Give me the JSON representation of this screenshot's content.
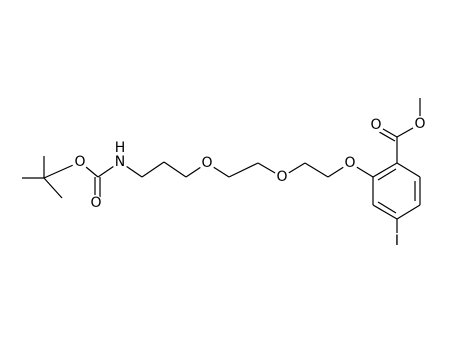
{
  "structure": {
    "atom_labels": [
      "O",
      "O",
      "H",
      "N",
      "O",
      "O",
      "O",
      "O",
      "O",
      "I"
    ]
  }
}
